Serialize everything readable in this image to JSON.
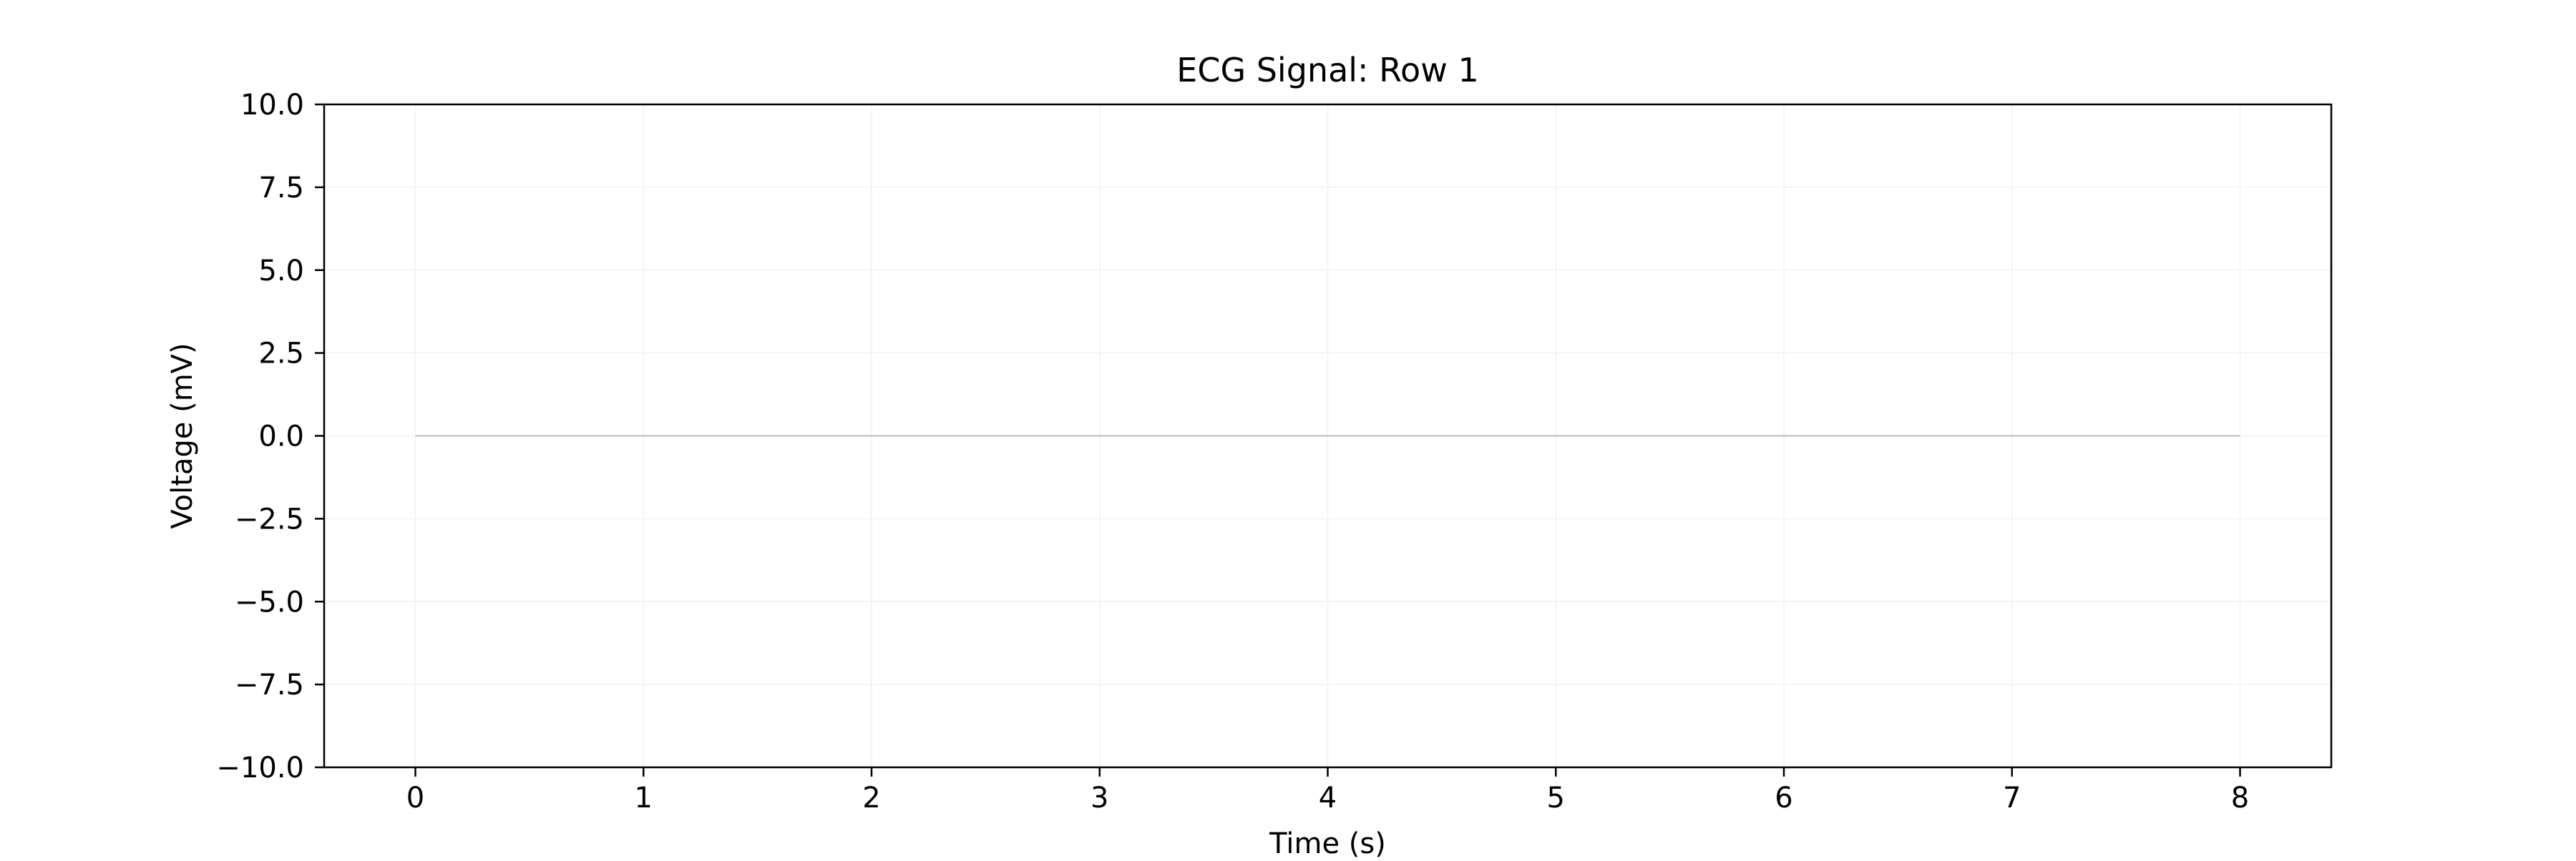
{
  "chart_data": {
    "type": "line",
    "title": "ECG Signal: Row 1",
    "xlabel": "Time (s)",
    "ylabel": "Voltage (mV)",
    "xlim": [
      -0.4,
      8.4
    ],
    "ylim": [
      -10,
      10
    ],
    "x_ticks": [
      0,
      1,
      2,
      3,
      4,
      5,
      6,
      7,
      8
    ],
    "x_tick_labels": [
      "0",
      "1",
      "2",
      "3",
      "4",
      "5",
      "6",
      "7",
      "8"
    ],
    "y_ticks": [
      -10,
      -7.5,
      -5,
      -2.5,
      0,
      2.5,
      5,
      7.5,
      10
    ],
    "y_tick_labels": [
      "−10.0",
      "−7.5",
      "−5.0",
      "−2.5",
      "0.0",
      "2.5",
      "5.0",
      "7.5",
      "10.0"
    ],
    "grid": true,
    "series": [
      {
        "x": [
          0,
          1,
          2,
          3,
          4,
          5,
          6,
          7,
          8
        ],
        "values": [
          0,
          0,
          0,
          0,
          0,
          0,
          0,
          0,
          0
        ],
        "color": "#c8c8c8"
      }
    ]
  }
}
